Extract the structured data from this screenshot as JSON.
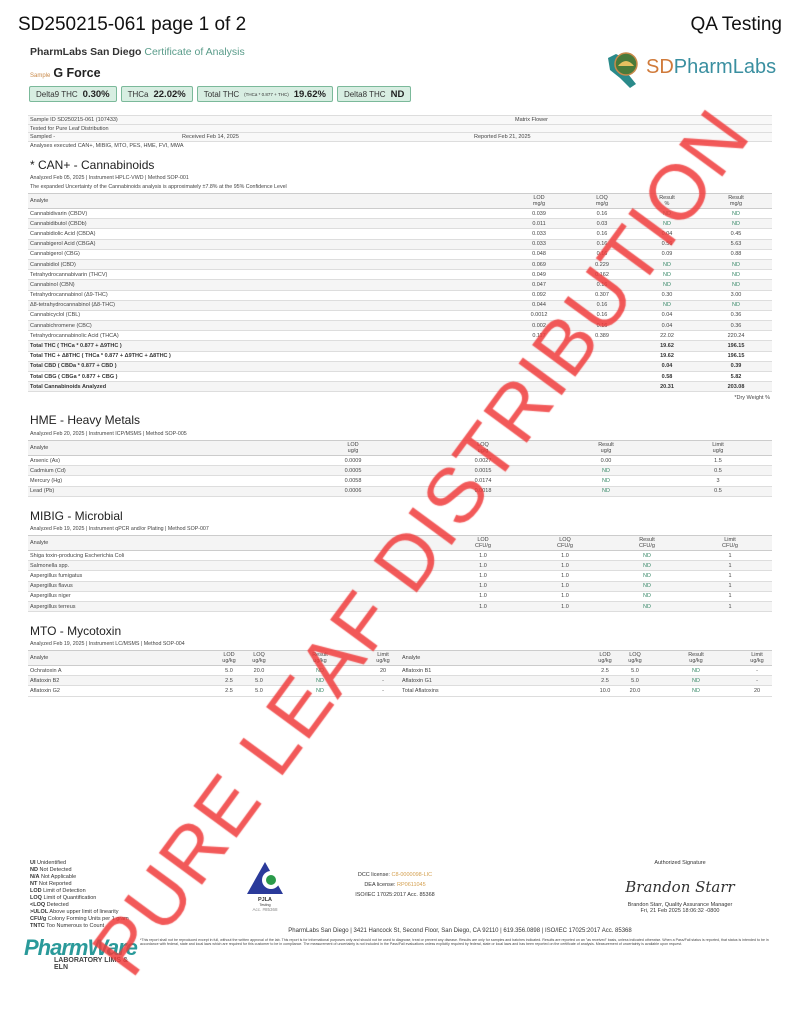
{
  "header": {
    "doc_title": "SD250215-061 page 1 of 2",
    "right_title": "QA Testing"
  },
  "lab": {
    "name": "PharmLabs San Diego",
    "doc_type": "Certificate of Analysis",
    "logo_text_1": "SD",
    "logo_text_2": "PharmLabs",
    "logo_arc": "PharmLabs"
  },
  "sample": {
    "label": "Sample",
    "name": "G Force"
  },
  "pills": [
    {
      "label": "Delta9 THC",
      "sub": "",
      "value": "0.30%"
    },
    {
      "label": "THCa",
      "sub": "",
      "value": "22.02%"
    },
    {
      "label": "Total THC",
      "sub": "(THCa * 0.877 + THC)",
      "value": "19.62%"
    },
    {
      "label": "Delta8 THC",
      "sub": "",
      "value": "ND"
    }
  ],
  "info": {
    "sample_id_label": "Sample ID",
    "sample_id": "SD250215-061 (107433)",
    "matrix_label": "Matrix",
    "matrix": "Flower",
    "tested_for_label": "Tested for",
    "tested_for": "Pure Leaf Distribution",
    "sampled_label": "Sampled",
    "sampled": "-",
    "received_label": "Received",
    "received": "Feb 14, 2025",
    "reported_label": "Reported",
    "reported": "Feb 21, 2025",
    "analyses_label": "Analyses executed",
    "analyses": "CAN+, MIBIG, MTO, PES, HME, FVI, MWA"
  },
  "cannabinoids": {
    "title": "* CAN+ - Cannabinoids",
    "meta": "Analyzed Feb 05, 2025  |  Instrument HPLC-VWD  | Method SOP-001",
    "uncertainty": "The expanded Uncertainty of the Cannabinoids analysis is approximately ±7.8% at the 95% Confidence Level",
    "headers": [
      "Analyte",
      "LOD\nmg/g",
      "LOQ\nmg/g",
      "Result\n%",
      "Result\nmg/g"
    ],
    "rows": [
      [
        "Cannabidivarin (CBDV)",
        "0.039",
        "0.16",
        "ND",
        "ND"
      ],
      [
        "Cannabidibutol (CBDb)",
        "0.011",
        "0.03",
        "ND",
        "ND"
      ],
      [
        "Cannabidiolic Acid (CBDA)",
        "0.033",
        "0.16",
        "0.04",
        "0.45"
      ],
      [
        "Cannabigerol Acid (CBGA)",
        "0.033",
        "0.16",
        "0.56",
        "5.63"
      ],
      [
        "Cannabigerol (CBG)",
        "0.048",
        "0.16",
        "0.09",
        "0.88"
      ],
      [
        "Cannabidiol (CBD)",
        "0.069",
        "0.229",
        "ND",
        "ND"
      ],
      [
        "Tetrahydrocannabivarin (THCV)",
        "0.049",
        "0.162",
        "ND",
        "ND"
      ],
      [
        "Cannabinol (CBN)",
        "0.047",
        "0.16",
        "ND",
        "ND"
      ],
      [
        "Tetrahydrocannabinol (Δ9-THC)",
        "0.092",
        "0.307",
        "0.30",
        "3.00"
      ],
      [
        "Δ8-tetrahydrocannabinol (Δ8-THC)",
        "0.044",
        "0.16",
        "ND",
        "ND"
      ],
      [
        "Cannabicyclol (CBL)",
        "0.0012",
        "0.16",
        "0.04",
        "0.36"
      ],
      [
        "Cannabichromene (CBC)",
        "0.002",
        "0.16",
        "0.04",
        "0.36"
      ],
      [
        "Tetrahydrocannabinolic Acid (THCA)",
        "0.117",
        "0.389",
        "22.02",
        "220.24"
      ]
    ],
    "totals": [
      [
        "Total THC ( THCa * 0.877 + Δ9THC )",
        "",
        "",
        "19.62",
        "196.15"
      ],
      [
        "Total THC + Δ8THC ( THCa * 0.877 + Δ9THC + Δ8THC )",
        "",
        "",
        "19.62",
        "196.15"
      ],
      [
        "Total CBD ( CBDa * 0.877 + CBD )",
        "",
        "",
        "0.04",
        "0.39"
      ],
      [
        "Total CBG ( CBGa * 0.877 + CBG )",
        "",
        "",
        "0.58",
        "5.82"
      ],
      [
        "Total Cannabinoids Analyzed",
        "",
        "",
        "20.31",
        "203.08"
      ]
    ],
    "footnote": "*Dry Weight %"
  },
  "metals": {
    "title": "HME - Heavy Metals",
    "meta": "Analyzed Feb 20, 2025  |  Instrument ICP/MSMS  | Method SOP-005",
    "headers": [
      "Analyte",
      "LOD\nug/g",
      "LOQ\nug/g",
      "Result\nug/g",
      "Limit\nug/g"
    ],
    "rows": [
      [
        "Arsenic (As)",
        "0.0009",
        "0.0027",
        "0.00",
        "1.5"
      ],
      [
        "Cadmium (Cd)",
        "0.0005",
        "0.0015",
        "ND",
        "0.5"
      ],
      [
        "Mercury (Hg)",
        "0.0058",
        "0.0174",
        "ND",
        "3"
      ],
      [
        "Lead (Pb)",
        "0.0006",
        "0.0018",
        "ND",
        "0.5"
      ]
    ]
  },
  "microbial": {
    "title": "MIBIG - Microbial",
    "meta": "Analyzed Feb 19, 2025  |  Instrument qPCR and/or Plating  | Method SOP-007",
    "headers": [
      "Analyte",
      "LOD\nCFU/g",
      "LOQ\nCFU/g",
      "Result\nCFU/g",
      "Limit\nCFU/g"
    ],
    "rows": [
      [
        "Shiga toxin-producing Escherichia Coli",
        "1.0",
        "1.0",
        "ND",
        "1"
      ],
      [
        "Salmonella spp.",
        "1.0",
        "1.0",
        "ND",
        "1"
      ],
      [
        "Aspergillus fumigatus",
        "1.0",
        "1.0",
        "ND",
        "1"
      ],
      [
        "Aspergillus flavus",
        "1.0",
        "1.0",
        "ND",
        "1"
      ],
      [
        "Aspergillus niger",
        "1.0",
        "1.0",
        "ND",
        "1"
      ],
      [
        "Aspergillus terreus",
        "1.0",
        "1.0",
        "ND",
        "1"
      ]
    ]
  },
  "mycotoxin": {
    "title": "MTO - Mycotoxin",
    "meta": "Analyzed Feb 19, 2025  |  Instrument LC/MSMS  | Method SOP-004",
    "headers": [
      "Analyte",
      "LOD\nug/kg",
      "LOQ\nug/kg",
      "Result\nug/kg",
      "Limit\nug/kg",
      "Analyte",
      "LOD\nug/kg",
      "LOQ\nug/kg",
      "Result\nug/kg",
      "Limit\nug/kg"
    ],
    "rows": [
      [
        "Ochratoxin A",
        "5.0",
        "20.0",
        "ND",
        "20",
        "Aflatoxin B1",
        "2.5",
        "5.0",
        "ND",
        "-"
      ],
      [
        "Aflatoxin B2",
        "2.5",
        "5.0",
        "ND",
        "-",
        "Aflatoxin G1",
        "2.5",
        "5.0",
        "ND",
        "-"
      ],
      [
        "Aflatoxin G2",
        "2.5",
        "5.0",
        "ND",
        "-",
        "Total Aflatoxins",
        "10.0",
        "20.0",
        "ND",
        "20"
      ]
    ]
  },
  "legend": [
    [
      "UI",
      "Unidentified"
    ],
    [
      "ND",
      "Not Detected"
    ],
    [
      "N/A",
      "Not Applicable"
    ],
    [
      "NT",
      "Not Reported"
    ],
    [
      "LOD",
      "Limit of Detection"
    ],
    [
      "LOQ",
      "Limit of Quantification"
    ],
    [
      "<LOQ",
      "Detected"
    ],
    [
      ">ULOL",
      "Above upper limit of linearity"
    ],
    [
      "CFU/g",
      "Colony Forming Units per 1 gram"
    ],
    [
      "TNTC",
      "Too Numerous to Count"
    ]
  ],
  "pjla": {
    "name": "PJLA",
    "sub": "Testing",
    "acc": "Acc. #85368"
  },
  "licenses": {
    "dcc_label": "DCC license:",
    "dcc": "C8-0000098-LIC",
    "dea_label": "DEA license:",
    "dea": "RP0611045",
    "iso": "ISO/IEC 17025:2017 Acc. 85368"
  },
  "signature": {
    "label": "Authorized Signature",
    "handwritten": "Brandon Starr",
    "name": "Brandon Starr, Quality Assurance Manager",
    "date": "Fri, 21 Feb 2025 18:06:32 -0800"
  },
  "address": "PharmLabs San Diego | 3421 Hancock St, Second Floor, San Diego, CA 92110 | 619.356.0898 | ISO/IEC 17025:2017 Acc. 85368",
  "disclaimer": "*This report shall not be reproduced except in full, without the written approval of the lab. This report is for informational purposes only and should not be used to diagnose, treat or prevent any disease. Results are only for samples and batches indicated. Results are reported on an \"as received\" basis, unless indicated otherwise. When a Pass/Fail status is reported, that status is intended to be in accordance with federal, state and local laws which are required for this customer to be in compliance. The measurement of uncertainty is not included in the Pass/Fail evaluations unless explicitly required by federal, state or local laws and has been reported on the certificate of analysis. Measurement of uncertainty is available upon request.",
  "software_logo": {
    "name": "PharmWare",
    "tagline": "LABORATORY LIMS & ELN"
  },
  "watermark": "PURE LEAF DISTRIBUTION",
  "colors": {
    "watermark": "#f03c3c",
    "accent": "#5a9c8a",
    "pill_bg": "#d8eee2",
    "nd": "#3a8a6a"
  }
}
